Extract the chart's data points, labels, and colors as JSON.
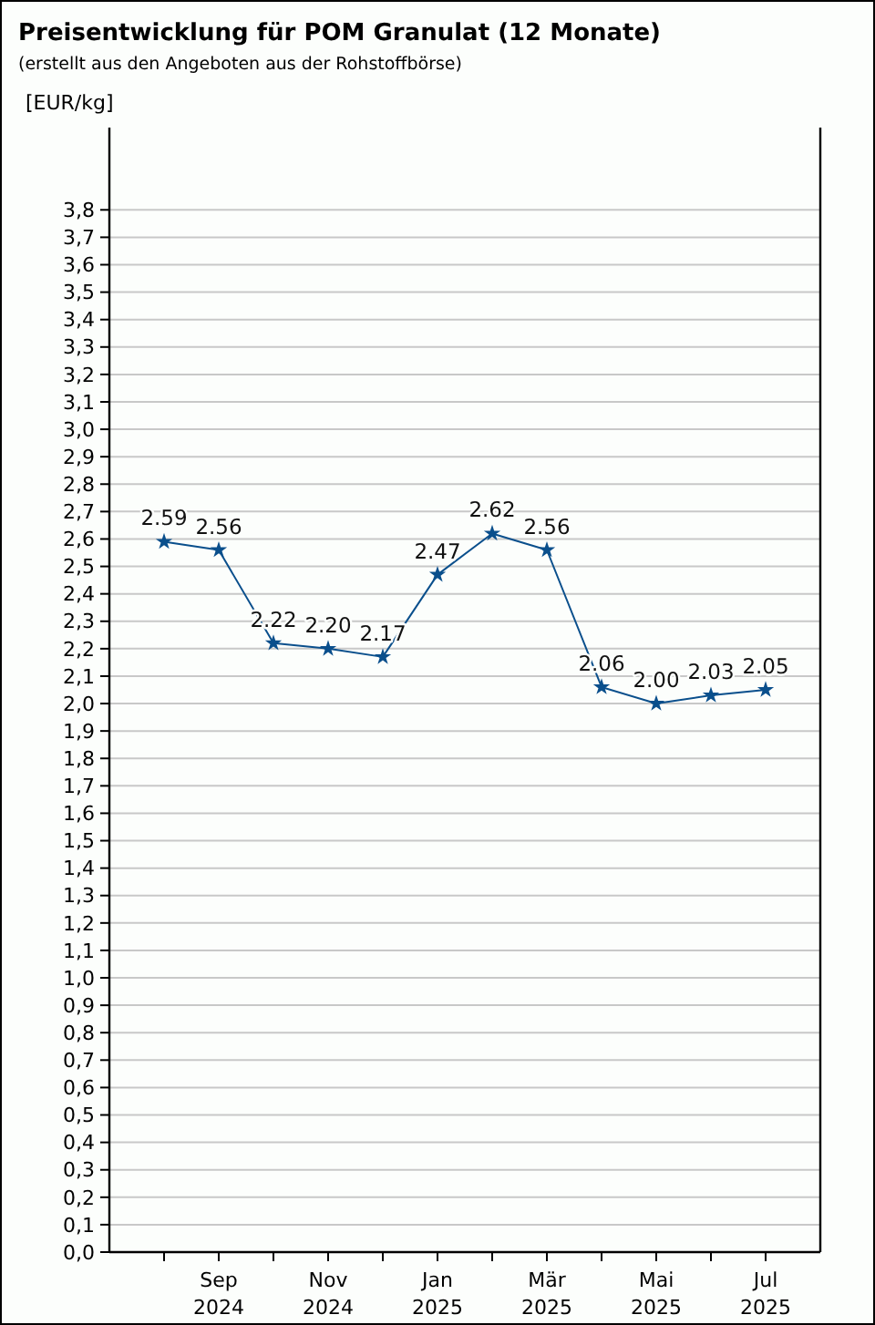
{
  "chart_data": {
    "type": "line",
    "title": "Preisentwicklung für POM Granulat (12 Monate)",
    "subtitle": "(erstellt aus den Angeboten aus der Rohstoffbörse)",
    "ylabel": "[EUR/kg]",
    "categories": [
      null,
      "Sep 2024",
      null,
      "Nov 2024",
      null,
      "Jan 2025",
      null,
      "Mär 2025",
      null,
      "Mai 2025",
      null,
      "Jul 2025"
    ],
    "series": [
      {
        "color": "#0a4f8c",
        "values": [
          2.59,
          2.56,
          2.22,
          2.2,
          2.17,
          2.47,
          2.62,
          2.56,
          2.06,
          2.0,
          2.03,
          2.05
        ],
        "value_labels": [
          "2.59",
          "2.56",
          "2.22",
          "2.20",
          "2.17",
          "2.47",
          "2.62",
          "2.56",
          "2.06",
          "2.00",
          "2.03",
          "2.05"
        ]
      }
    ],
    "ylim": [
      0,
      4.1
    ],
    "yticks": [
      {
        "value": 0,
        "label": "0,0"
      },
      {
        "value": 0.1,
        "label": "0,1"
      },
      {
        "value": 0.2,
        "label": "0,2"
      },
      {
        "value": 0.3,
        "label": "0,3"
      },
      {
        "value": 0.4,
        "label": "0,4"
      },
      {
        "value": 0.5,
        "label": "0,5"
      },
      {
        "value": 0.6,
        "label": "0,6"
      },
      {
        "value": 0.7,
        "label": "0,7"
      },
      {
        "value": 0.8,
        "label": "0,8"
      },
      {
        "value": 0.9,
        "label": "0,9"
      },
      {
        "value": 1.0,
        "label": "1,0"
      },
      {
        "value": 1.1,
        "label": "1,1"
      },
      {
        "value": 1.2,
        "label": "1,2"
      },
      {
        "value": 1.3,
        "label": "1,3"
      },
      {
        "value": 1.4,
        "label": "1,4"
      },
      {
        "value": 1.5,
        "label": "1,5"
      },
      {
        "value": 1.6,
        "label": "1,6"
      },
      {
        "value": 1.7,
        "label": "1,7"
      },
      {
        "value": 1.8,
        "label": "1,8"
      },
      {
        "value": 1.9,
        "label": "1,9"
      },
      {
        "value": 2.0,
        "label": "2,0"
      },
      {
        "value": 2.1,
        "label": "2,1"
      },
      {
        "value": 2.2,
        "label": "2,2"
      },
      {
        "value": 2.3,
        "label": "2,3"
      },
      {
        "value": 2.4,
        "label": "2,4"
      },
      {
        "value": 2.5,
        "label": "2,5"
      },
      {
        "value": 2.6,
        "label": "2,6"
      },
      {
        "value": 2.7,
        "label": "2,7"
      },
      {
        "value": 2.8,
        "label": "2,8"
      },
      {
        "value": 2.9,
        "label": "2,9"
      },
      {
        "value": 3.0,
        "label": "3,0"
      },
      {
        "value": 3.1,
        "label": "3,1"
      },
      {
        "value": 3.2,
        "label": "3,2"
      },
      {
        "value": 3.3,
        "label": "3,3"
      },
      {
        "value": 3.4,
        "label": "3,4"
      },
      {
        "value": 3.5,
        "label": "3,5"
      },
      {
        "value": 3.6,
        "label": "3,6"
      },
      {
        "value": 3.7,
        "label": "3,7"
      },
      {
        "value": 3.8,
        "label": "3,8"
      }
    ],
    "grid": "y",
    "marker": "star",
    "line_style": "solid"
  }
}
